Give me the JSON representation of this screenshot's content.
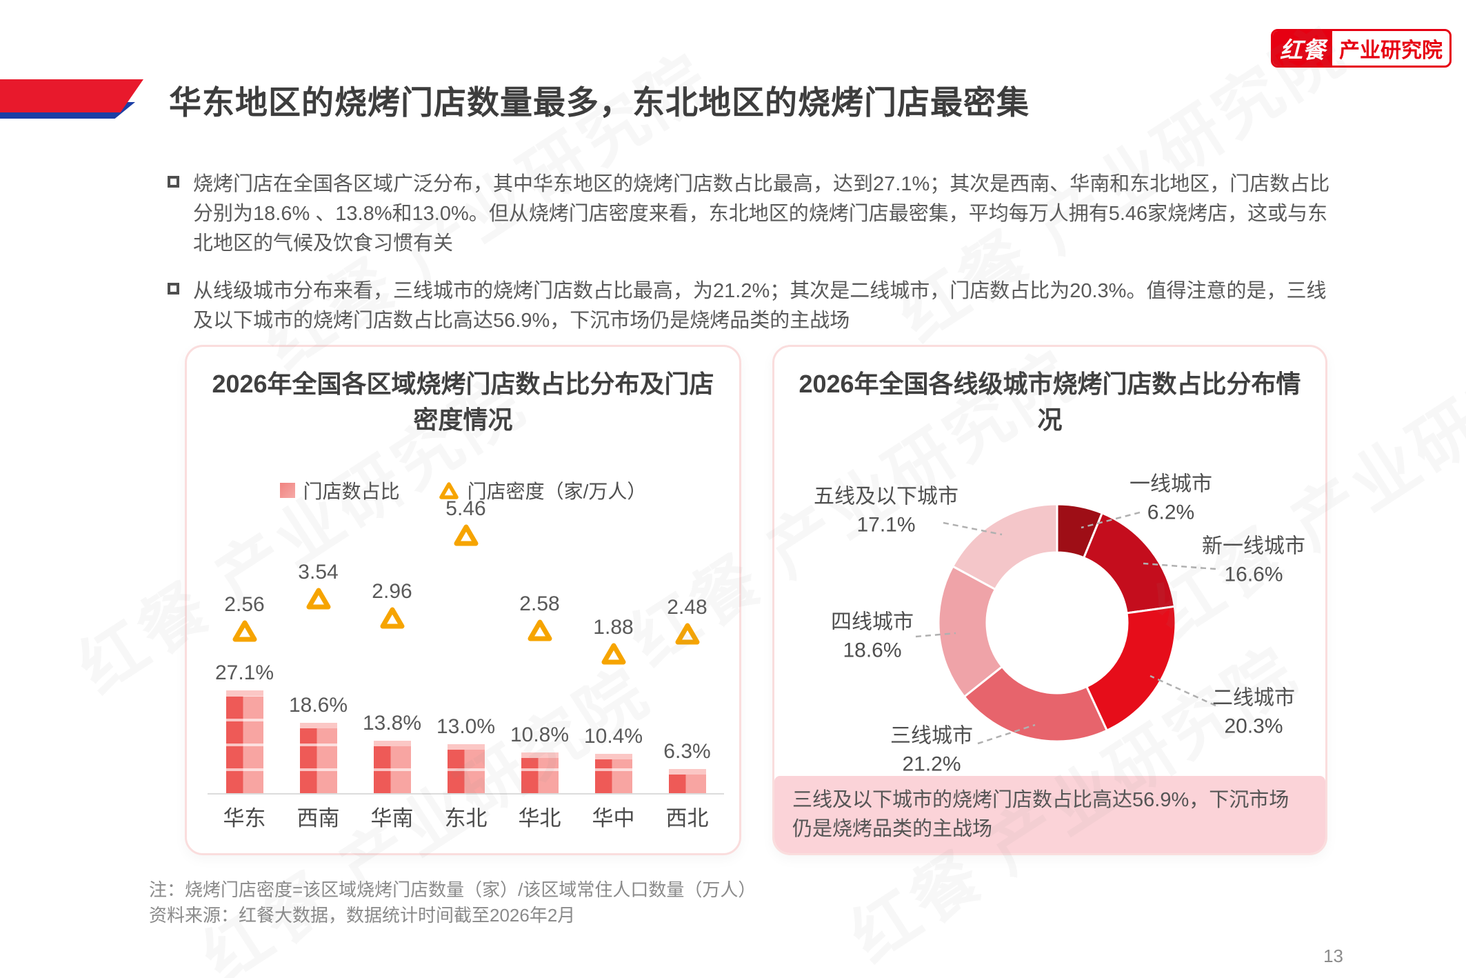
{
  "watermark": "红餐 产业研究院",
  "header": {
    "title": "华东地区的烧烤门店数量最多，东北地区的烧烤门店最密集",
    "logo": {
      "brand": "红餐",
      "suffix": "产业研究院"
    }
  },
  "bullets": [
    "烧烤门店在全国各区域广泛分布，其中华东地区的烧烤门店数占比最高，达到27.1%；其次是西南、华南和东北地区，门店数占比分别为18.6% 、13.8%和13.0%。但从烧烤门店密度来看，东北地区的烧烤门店最密集，平均每万人拥有5.46家烧烤店，这或与东北地区的气候及饮食习惯有关",
    "从线级城市分布来看，三线城市的烧烤门店数占比最高，为21.2%；其次是二线城市，门店数占比为20.3%。值得注意的是，三线及以下城市的烧烤门店数占比高达56.9%，下沉市场仍是烧烤品类的主战场"
  ],
  "chart_data": [
    {
      "type": "bar",
      "title": "2026年全国各区域烧烤门店数占比分布及门店密度情况",
      "categories": [
        "华东",
        "西南",
        "华南",
        "东北",
        "华北",
        "华中",
        "西北"
      ],
      "series": [
        {
          "name": "门店数占比",
          "type": "bar",
          "unit": "%",
          "values": [
            27.1,
            18.6,
            13.8,
            13.0,
            10.8,
            10.4,
            6.3
          ],
          "color": "#ee5a57"
        },
        {
          "name": "门店密度（家/万人）",
          "type": "point",
          "marker": "triangle",
          "values": [
            2.56,
            3.54,
            2.96,
            5.46,
            2.58,
            1.88,
            2.48
          ],
          "color": "#f6a400"
        }
      ],
      "legend_position": "top",
      "grid": false,
      "ylim": [
        0,
        30
      ]
    },
    {
      "type": "pie",
      "donut": true,
      "title": "2026年全国各线级城市烧烤门店数占比分布情况",
      "labels": [
        "一线城市",
        "新一线城市",
        "二线城市",
        "三线城市",
        "四线城市",
        "五线及以下城市"
      ],
      "values": [
        6.2,
        16.6,
        20.3,
        21.2,
        18.6,
        17.1
      ],
      "colors": [
        "#9e0e16",
        "#c40d1d",
        "#e60d1a",
        "#e7646c",
        "#efa3a8",
        "#f4c6c9"
      ],
      "start_angle": "top, clockwise",
      "callout": "三线及以下城市的烧烤门店数占比高达56.9%，下沉市场仍是烧烤品类的主战场"
    }
  ],
  "footnotes": [
    "注：烧烤门店密度=该区域烧烤门店数量（家）/该区域常住人口数量（万人）",
    "资料来源：红餐大数据，数据统计时间截至2026年2月"
  ],
  "page": {
    "number": "13"
  }
}
